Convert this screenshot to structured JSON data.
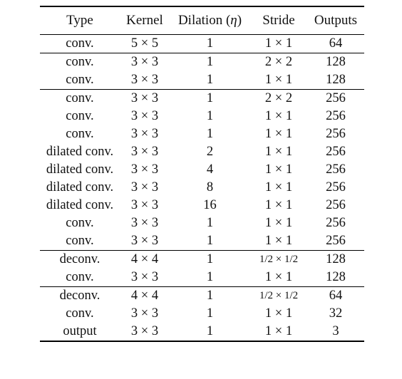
{
  "columns": [
    "Type",
    "Kernel",
    "Dilation (η)",
    "Stride",
    "Outputs"
  ],
  "header": {
    "dilation_prefix": "Dilation (",
    "dilation_symbol": "η",
    "dilation_suffix": ")"
  },
  "groups": [
    [
      {
        "type": "conv.",
        "kernel": "5 × 5",
        "dilation": "1",
        "stride": "1 × 1",
        "outputs": "64"
      }
    ],
    [
      {
        "type": "conv.",
        "kernel": "3 × 3",
        "dilation": "1",
        "stride": "2 × 2",
        "outputs": "128"
      },
      {
        "type": "conv.",
        "kernel": "3 × 3",
        "dilation": "1",
        "stride": "1 × 1",
        "outputs": "128"
      }
    ],
    [
      {
        "type": "conv.",
        "kernel": "3 × 3",
        "dilation": "1",
        "stride": "2 × 2",
        "outputs": "256"
      },
      {
        "type": "conv.",
        "kernel": "3 × 3",
        "dilation": "1",
        "stride": "1 × 1",
        "outputs": "256"
      },
      {
        "type": "conv.",
        "kernel": "3 × 3",
        "dilation": "1",
        "stride": "1 × 1",
        "outputs": "256"
      },
      {
        "type": "dilated conv.",
        "kernel": "3 × 3",
        "dilation": "2",
        "stride": "1 × 1",
        "outputs": "256"
      },
      {
        "type": "dilated conv.",
        "kernel": "3 × 3",
        "dilation": "4",
        "stride": "1 × 1",
        "outputs": "256"
      },
      {
        "type": "dilated conv.",
        "kernel": "3 × 3",
        "dilation": "8",
        "stride": "1 × 1",
        "outputs": "256"
      },
      {
        "type": "dilated conv.",
        "kernel": "3 × 3",
        "dilation": "16",
        "stride": "1 × 1",
        "outputs": "256"
      },
      {
        "type": "conv.",
        "kernel": "3 × 3",
        "dilation": "1",
        "stride": "1 × 1",
        "outputs": "256"
      },
      {
        "type": "conv.",
        "kernel": "3 × 3",
        "dilation": "1",
        "stride": "1 × 1",
        "outputs": "256"
      }
    ],
    [
      {
        "type": "deconv.",
        "kernel": "4 × 4",
        "dilation": "1",
        "stride": "1/2 × 1/2",
        "outputs": "128"
      },
      {
        "type": "conv.",
        "kernel": "3 × 3",
        "dilation": "1",
        "stride": "1 × 1",
        "outputs": "128"
      }
    ],
    [
      {
        "type": "deconv.",
        "kernel": "4 × 4",
        "dilation": "1",
        "stride": "1/2 × 1/2",
        "outputs": "64"
      },
      {
        "type": "conv.",
        "kernel": "3 × 3",
        "dilation": "1",
        "stride": "1 × 1",
        "outputs": "32"
      },
      {
        "type": "output",
        "kernel": "3 × 3",
        "dilation": "1",
        "stride": "1 × 1",
        "outputs": "3"
      }
    ]
  ]
}
